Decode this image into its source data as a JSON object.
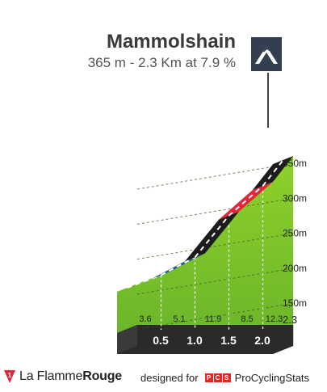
{
  "header": {
    "title": "Mammolshain",
    "subtitle": "365 m - 2.3 Km at 7.9 %"
  },
  "chart_data": {
    "type": "area",
    "title": "Mammolshain",
    "subtitle": "365 m - 2.3 Km at 7.9 %",
    "y_ticks": [
      {
        "value": 150,
        "label": "150m"
      },
      {
        "value": 200,
        "label": "200m"
      },
      {
        "value": 250,
        "label": "250m"
      },
      {
        "value": 300,
        "label": "300m"
      },
      {
        "value": 350,
        "label": "350m"
      }
    ],
    "x_ticks": [
      {
        "km": 0.5,
        "label": "0.5"
      },
      {
        "km": 1.0,
        "label": "1.0"
      },
      {
        "km": 1.5,
        "label": "1.5"
      },
      {
        "km": 2.0,
        "label": "2.0"
      }
    ],
    "end_label": "2.3",
    "summit_elevation": 365,
    "summit_icon": "mountain-icon",
    "segments": [
      {
        "from_km": 0.0,
        "to_km": 0.5,
        "grade": 3.6,
        "grade_label": "3.6",
        "color": "#74c42e"
      },
      {
        "from_km": 0.5,
        "to_km": 1.0,
        "grade": 5.1,
        "grade_label": "5.1",
        "color": "#1f5e93"
      },
      {
        "from_km": 1.0,
        "to_km": 1.5,
        "grade": 11.9,
        "grade_label": "11.9",
        "color": "#1c1c1c"
      },
      {
        "from_km": 1.5,
        "to_km": 2.0,
        "grade": 8.5,
        "grade_label": "8.5",
        "color": "#e3253d"
      },
      {
        "from_km": 2.0,
        "to_km": 2.3,
        "grade": 12.3,
        "grade_label": "12.3",
        "color": "#1c1c1c"
      }
    ]
  },
  "footer": {
    "brand_a": "La Flamme",
    "brand_b": "Rouge",
    "designed_for": "designed for",
    "pcs_letters": [
      "P",
      "C",
      "S"
    ],
    "pcs_name": "ProCyclingStats"
  }
}
